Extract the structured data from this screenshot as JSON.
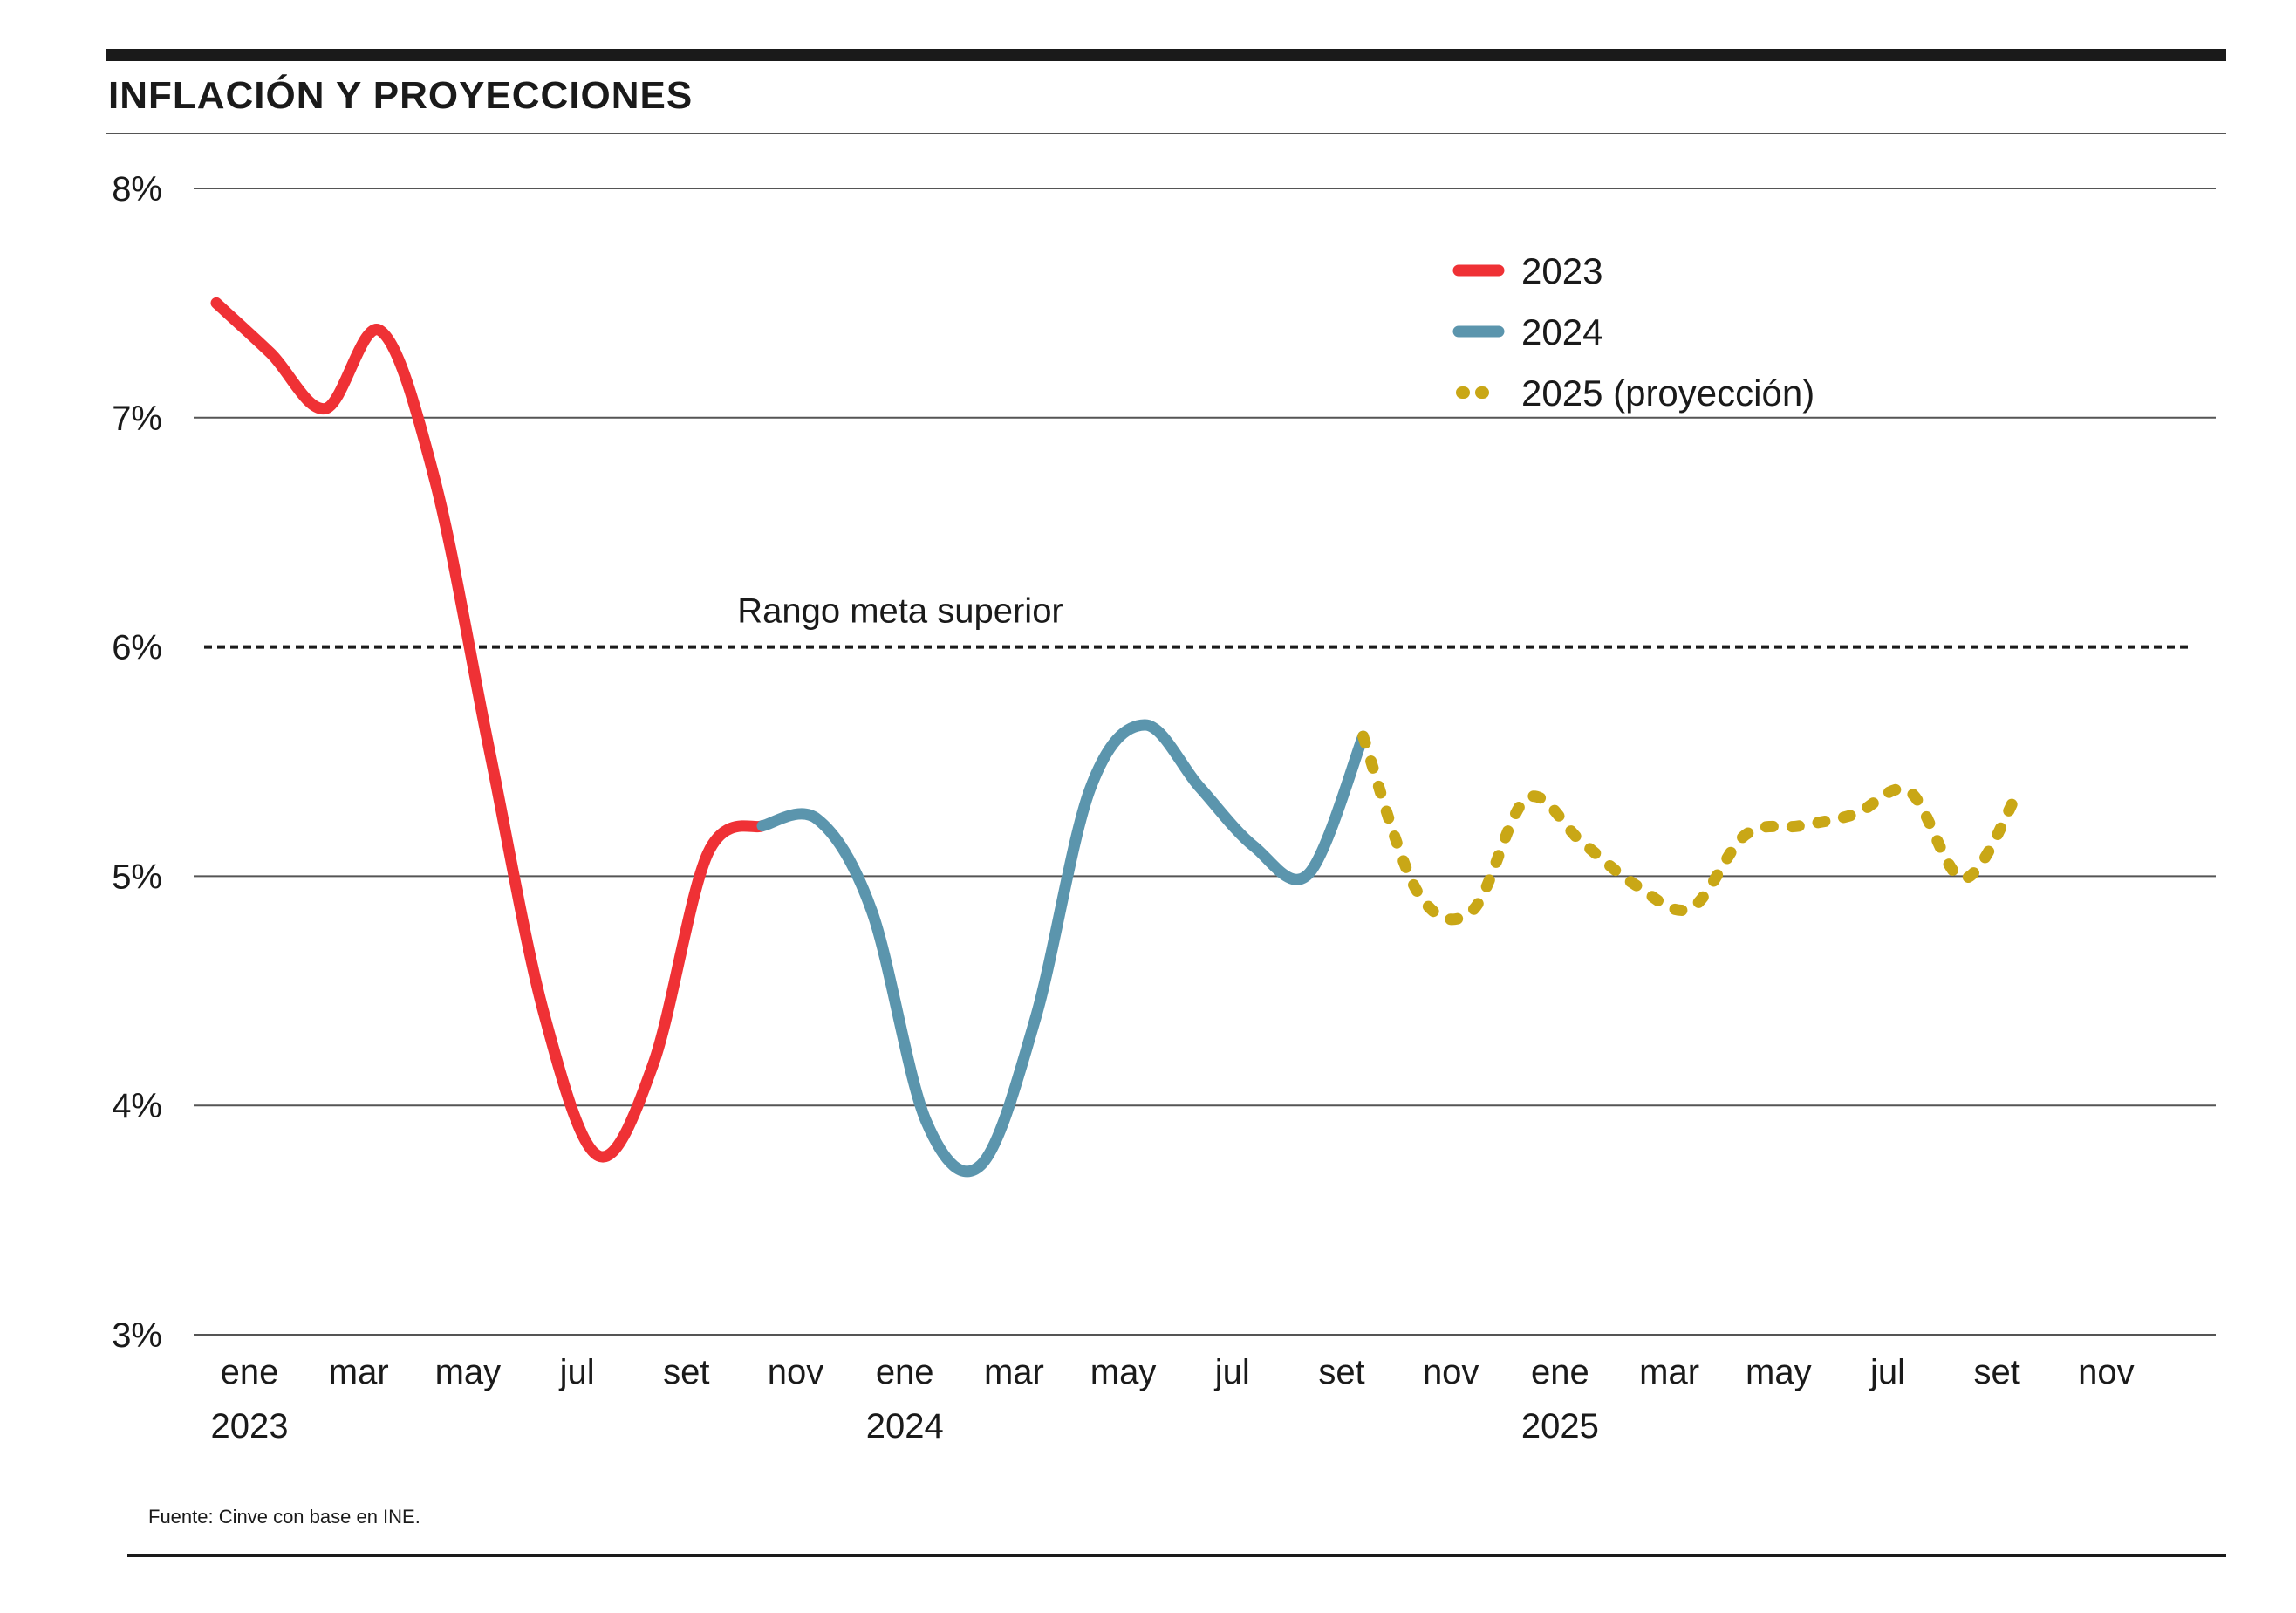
{
  "title": "INFLACIÓN Y PROYECCIONES",
  "source": "Fuente: Cinve con base en INE.",
  "colors": {
    "series_2023": "#ef3135",
    "series_2024": "#5b95ad",
    "series_2025": "#c9a716",
    "text": "#1a1a1a",
    "grid": "#555555"
  },
  "chart_data": {
    "type": "line",
    "title": "INFLACIÓN Y PROYECCIONES",
    "xlabel": "",
    "ylabel": "",
    "ylim": [
      3,
      8
    ],
    "y_ticks": [
      {
        "value": 8,
        "label": "8%"
      },
      {
        "value": 7,
        "label": "7%"
      },
      {
        "value": 6,
        "label": "6%"
      },
      {
        "value": 5,
        "label": "5%"
      },
      {
        "value": 4,
        "label": "4%"
      },
      {
        "value": 3,
        "label": "3%"
      }
    ],
    "x_ticks": [
      {
        "month_index": 0,
        "label": "ene",
        "year": "2023"
      },
      {
        "month_index": 2,
        "label": "mar",
        "year": ""
      },
      {
        "month_index": 4,
        "label": "may",
        "year": ""
      },
      {
        "month_index": 6,
        "label": "jul",
        "year": ""
      },
      {
        "month_index": 8,
        "label": "set",
        "year": ""
      },
      {
        "month_index": 10,
        "label": "nov",
        "year": ""
      },
      {
        "month_index": 12,
        "label": "ene",
        "year": "2024"
      },
      {
        "month_index": 14,
        "label": "mar",
        "year": ""
      },
      {
        "month_index": 16,
        "label": "may",
        "year": ""
      },
      {
        "month_index": 18,
        "label": "jul",
        "year": ""
      },
      {
        "month_index": 20,
        "label": "set",
        "year": ""
      },
      {
        "month_index": 22,
        "label": "nov",
        "year": ""
      },
      {
        "month_index": 24,
        "label": "ene",
        "year": "2025"
      },
      {
        "month_index": 26,
        "label": "mar",
        "year": ""
      },
      {
        "month_index": 28,
        "label": "may",
        "year": ""
      },
      {
        "month_index": 30,
        "label": "jul",
        "year": ""
      },
      {
        "month_index": 32,
        "label": "set",
        "year": ""
      },
      {
        "month_index": 34,
        "label": "nov",
        "year": ""
      }
    ],
    "reference_line": {
      "value": 6,
      "label": "Rango meta superior",
      "style": "dashed"
    },
    "legend_position": "top-right",
    "series": [
      {
        "name": "2023",
        "style": "solid",
        "points": [
          {
            "x": "2023-01",
            "y": 7.5
          },
          {
            "x": "2023-02",
            "y": 7.28
          },
          {
            "x": "2023-03",
            "y": 7.04
          },
          {
            "x": "2023-04",
            "y": 7.38
          },
          {
            "x": "2023-05",
            "y": 6.73
          },
          {
            "x": "2023-06",
            "y": 5.55
          },
          {
            "x": "2023-07",
            "y": 4.4
          },
          {
            "x": "2023-08",
            "y": 3.78
          },
          {
            "x": "2023-09",
            "y": 4.18
          },
          {
            "x": "2023-10",
            "y": 5.1
          },
          {
            "x": "2023-11",
            "y": 5.22
          }
        ]
      },
      {
        "name": "2024",
        "style": "solid",
        "points": [
          {
            "x": "2023-11",
            "y": 5.22
          },
          {
            "x": "2023-12",
            "y": 5.25
          },
          {
            "x": "2024-01",
            "y": 4.85
          },
          {
            "x": "2024-02",
            "y": 3.93
          },
          {
            "x": "2024-03",
            "y": 3.74
          },
          {
            "x": "2024-04",
            "y": 4.38
          },
          {
            "x": "2024-05",
            "y": 5.38
          },
          {
            "x": "2024-06",
            "y": 5.66
          },
          {
            "x": "2024-07",
            "y": 5.39
          },
          {
            "x": "2024-08",
            "y": 5.13
          },
          {
            "x": "2024-09",
            "y": 5.01
          },
          {
            "x": "2024-10",
            "y": 5.61
          }
        ]
      },
      {
        "name": "2025 (proyección)",
        "style": "dotted",
        "points": [
          {
            "x": "2024-10",
            "y": 5.61
          },
          {
            "x": "2024-11",
            "y": 4.93
          },
          {
            "x": "2024-12",
            "y": 4.85
          },
          {
            "x": "2025-01",
            "y": 5.34
          },
          {
            "x": "2025-02",
            "y": 5.15
          },
          {
            "x": "2025-03",
            "y": 4.96
          },
          {
            "x": "2025-04",
            "y": 4.86
          },
          {
            "x": "2025-05",
            "y": 5.18
          },
          {
            "x": "2025-06",
            "y": 5.22
          },
          {
            "x": "2025-07",
            "y": 5.27
          },
          {
            "x": "2025-08",
            "y": 5.37
          },
          {
            "x": "2025-09",
            "y": 4.99
          },
          {
            "x": "2025-10",
            "y": 5.37
          }
        ]
      }
    ]
  }
}
